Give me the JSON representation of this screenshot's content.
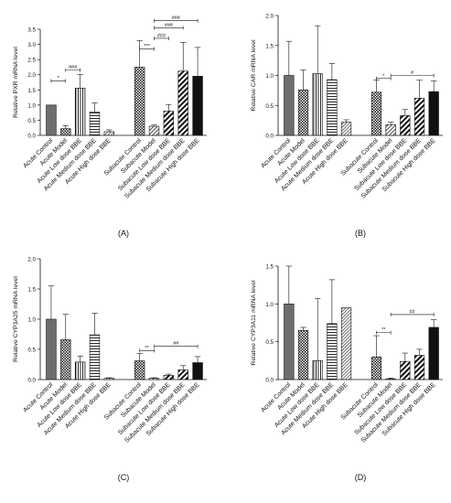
{
  "chart_data": [
    {
      "type": "bar",
      "panel_label": "(A)",
      "ylabel": "Relative PXR mRNA level",
      "ylim": [
        0,
        3.5
      ],
      "yticks": [
        "0.0",
        "0.5",
        "1.0",
        "1.5",
        "2.0",
        "2.5",
        "3.0",
        "3.5"
      ],
      "categories": [
        "Acute Control",
        "Acute Model",
        "Acute Low dose BBE",
        "Acute Medium dose BBE",
        "Acute High dose BBE",
        "Subacute Control",
        "Subacute Model",
        "Subacute Low dose BBE",
        "Subacute Medium dose BBE",
        "Subacute High dose BBE"
      ],
      "values": [
        1.0,
        0.22,
        1.56,
        0.77,
        0.12,
        2.25,
        0.3,
        0.8,
        2.12,
        1.95
      ],
      "errors": [
        0.0,
        0.1,
        0.45,
        0.3,
        0.06,
        0.88,
        0.04,
        0.22,
        0.95,
        0.95
      ],
      "annotations": [
        {
          "label": "*",
          "from": 0,
          "to": 1,
          "y": 1.8
        },
        {
          "label": "###",
          "from": 1,
          "to": 2,
          "y": 2.15
        },
        {
          "label": "***",
          "from": 5,
          "to": 6,
          "y": 2.85
        },
        {
          "label": "###",
          "from": 6,
          "to": 7,
          "y": 3.2
        },
        {
          "label": "###",
          "from": 6,
          "to": 8,
          "y": 3.55
        },
        {
          "label": "###",
          "from": 6,
          "to": 9,
          "y": 3.9
        }
      ]
    },
    {
      "type": "bar",
      "panel_label": "(B)",
      "ylabel": "Relative CAR mRNA level",
      "ylim": [
        0,
        2.0
      ],
      "yticks": [
        "0.0",
        "0.5",
        "1.0",
        "1.5",
        "2.0"
      ],
      "categories": [
        "Acute Control",
        "Acute Model",
        "Acute Low dose BBE",
        "Acute Medium dose BBE",
        "Acute High dose BBE",
        "Subacute Control",
        "Subacute Model",
        "Subacute Low dose BBE",
        "Subacute Medium dose BBE",
        "Subacute High dose BBE"
      ],
      "values": [
        1.0,
        0.76,
        1.03,
        0.93,
        0.22,
        0.72,
        0.18,
        0.33,
        0.62,
        0.73
      ],
      "errors": [
        0.57,
        0.33,
        0.8,
        0.27,
        0.04,
        0.2,
        0.04,
        0.1,
        0.3,
        0.18
      ],
      "annotations": [
        {
          "label": "*",
          "from": 5,
          "to": 6,
          "y": 0.95
        },
        {
          "label": "#",
          "from": 6,
          "to": 9,
          "y": 1.0
        }
      ]
    },
    {
      "type": "bar",
      "panel_label": "(C)",
      "ylabel": "Relative CYP3A25 mRNA level",
      "ylim": [
        0,
        2.0
      ],
      "yticks": [
        "0.0",
        "0.5",
        "1.0",
        "1.5",
        "2.0"
      ],
      "categories": [
        "Acute Control",
        "Acute Model",
        "Acute Low dose BBE",
        "Acute Medium dose BBE",
        "Acute High dose BBE",
        "Subacute Control",
        "Subacute Model",
        "Subacute Low dose BBE",
        "Subacute Medium dose BBE",
        "Subacute High dose BBE"
      ],
      "values": [
        1.0,
        0.66,
        0.29,
        0.74,
        0.02,
        0.31,
        0.02,
        0.07,
        0.16,
        0.28
      ],
      "errors": [
        0.55,
        0.42,
        0.1,
        0.36,
        0.01,
        0.12,
        0.01,
        0.02,
        0.07,
        0.1
      ],
      "annotations": [
        {
          "label": "**",
          "from": 5,
          "to": 6,
          "y": 0.48
        },
        {
          "label": "##",
          "from": 6,
          "to": 9,
          "y": 0.55
        }
      ]
    },
    {
      "type": "bar",
      "panel_label": "(D)",
      "ylabel": "Relative CYP3A11 mRNA level",
      "ylim": [
        0,
        1.5
      ],
      "yticks": [
        "0.0",
        "0.5",
        "1.0",
        "1.5"
      ],
      "categories": [
        "Acute Control",
        "Acute Model",
        "Acute Low dose BBE",
        "Acute Medium dose BBE",
        "Acute High dose BBE",
        "Subacute Control",
        "Subacute Model",
        "Subacute Low dose BBE",
        "Subacute Medium dose BBE",
        "Subacute High dose BBE"
      ],
      "values": [
        1.0,
        0.65,
        0.25,
        0.74,
        0.95,
        0.3,
        0.01,
        0.24,
        0.32,
        0.69
      ],
      "errors": [
        0.5,
        0.04,
        0.82,
        0.58,
        0.0,
        0.28,
        0.01,
        0.11,
        0.08,
        0.1
      ],
      "annotations": [
        {
          "label": "**",
          "from": 5,
          "to": 6,
          "y": 0.62
        },
        {
          "label": "##",
          "from": 6,
          "to": 9,
          "y": 0.86
        }
      ]
    }
  ]
}
